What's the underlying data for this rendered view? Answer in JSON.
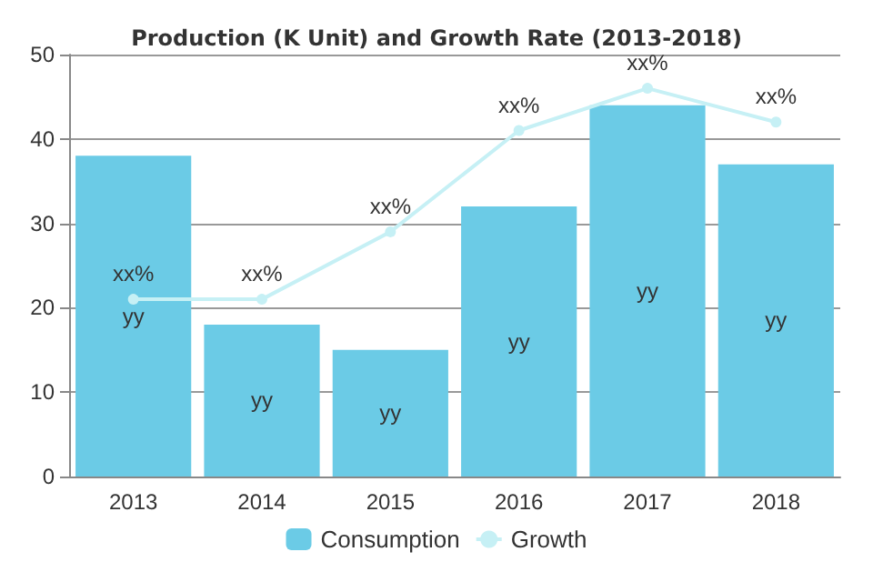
{
  "chart_data": {
    "type": "bar",
    "title": "Production (K Unit) and Growth Rate (2013-2018)",
    "categories": [
      "2013",
      "2014",
      "2015",
      "2016",
      "2017",
      "2018"
    ],
    "series": [
      {
        "name": "Consumption",
        "color": "#6bcbe6",
        "values": [
          38,
          18,
          15,
          32,
          44,
          37
        ],
        "value_labels": [
          "yy",
          "yy",
          "yy",
          "yy",
          "yy",
          "yy"
        ]
      },
      {
        "name": "Growth",
        "type": "line",
        "color": "#c6f0f5",
        "values": [
          21,
          21,
          29,
          41,
          46,
          42
        ],
        "value_labels": [
          "xx%",
          "xx%",
          "xx%",
          "xx%",
          "xx%",
          "xx%"
        ],
        "marker": "circle"
      }
    ],
    "ylim": [
      0,
      50
    ],
    "yticks": [
      0,
      10,
      20,
      30,
      40,
      50
    ],
    "grid": "y",
    "legend": "bottom"
  }
}
